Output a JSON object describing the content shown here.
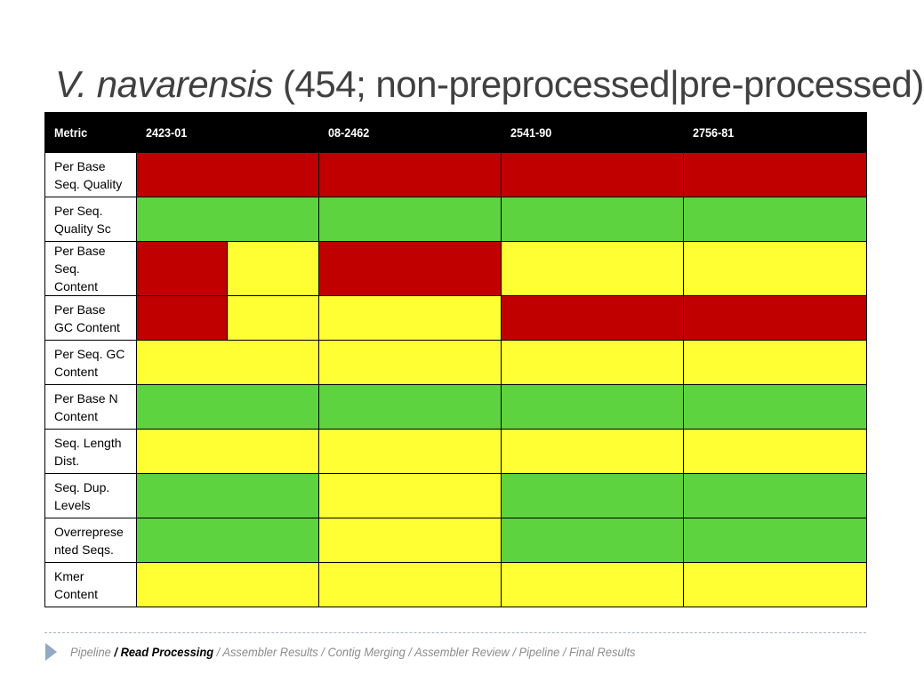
{
  "title": {
    "species": "V. navarensis",
    "subtitle": " (454; non-preprocessed|pre-processed)"
  },
  "table": {
    "headers": [
      "Metric",
      "2423-01",
      "08-2462",
      "2541-90",
      "2756-81"
    ],
    "rows": [
      {
        "label": [
          "Per Base",
          "Seq. Quality"
        ],
        "cells": [
          {
            "status": "red",
            "span": 2
          },
          {
            "status": "red",
            "span": 2
          },
          {
            "status": "red",
            "span": 2
          },
          {
            "status": "red",
            "span": 2
          }
        ]
      },
      {
        "label": [
          "Per Seq.",
          "Quality Sc"
        ],
        "cells": [
          {
            "status": "green",
            "span": 2
          },
          {
            "status": "green",
            "span": 2
          },
          {
            "status": "green",
            "span": 2
          },
          {
            "status": "green",
            "span": 2
          }
        ]
      },
      {
        "label": [
          "Per Base",
          "Seq.",
          "Content"
        ],
        "cells": [
          {
            "status": "red",
            "span": 1
          },
          {
            "status": "yellow",
            "span": 1
          },
          {
            "status": "red",
            "span": 2
          },
          {
            "status": "yellow",
            "span": 2
          },
          {
            "status": "yellow",
            "span": 2
          }
        ]
      },
      {
        "label": [
          "Per Base",
          "GC Content"
        ],
        "cells": [
          {
            "status": "red",
            "span": 1
          },
          {
            "status": "yellow",
            "span": 1
          },
          {
            "status": "yellow",
            "span": 2
          },
          {
            "status": "red",
            "span": 2
          },
          {
            "status": "red",
            "span": 2
          }
        ]
      },
      {
        "label": [
          "Per Seq. GC",
          "Content"
        ],
        "cells": [
          {
            "status": "yellow",
            "span": 2
          },
          {
            "status": "yellow",
            "span": 2
          },
          {
            "status": "yellow",
            "span": 2
          },
          {
            "status": "yellow",
            "span": 2
          }
        ]
      },
      {
        "label": [
          "Per Base N",
          "Content"
        ],
        "cells": [
          {
            "status": "green",
            "span": 2
          },
          {
            "status": "green",
            "span": 2
          },
          {
            "status": "green",
            "span": 2
          },
          {
            "status": "green",
            "span": 2
          }
        ]
      },
      {
        "label": [
          "Seq. Length",
          "Dist."
        ],
        "cells": [
          {
            "status": "yellow",
            "span": 2
          },
          {
            "status": "yellow",
            "span": 2
          },
          {
            "status": "yellow",
            "span": 2
          },
          {
            "status": "yellow",
            "span": 2
          }
        ]
      },
      {
        "label": [
          "Seq. Dup.",
          "Levels"
        ],
        "cells": [
          {
            "status": "green",
            "span": 2
          },
          {
            "status": "yellow",
            "span": 2
          },
          {
            "status": "green",
            "span": 2
          },
          {
            "status": "green",
            "span": 2
          }
        ]
      },
      {
        "label": [
          "Overreprese",
          "nted Seqs."
        ],
        "cells": [
          {
            "status": "green",
            "span": 2
          },
          {
            "status": "yellow",
            "span": 2
          },
          {
            "status": "green",
            "span": 2
          },
          {
            "status": "green",
            "span": 2
          }
        ]
      },
      {
        "label": [
          "Kmer",
          "Content"
        ],
        "cells": [
          {
            "status": "yellow",
            "span": 2
          },
          {
            "status": "yellow",
            "span": 2
          },
          {
            "status": "yellow",
            "span": 2
          },
          {
            "status": "yellow",
            "span": 2
          }
        ]
      }
    ]
  },
  "status_colors": {
    "red": "#c00000",
    "green": "#5cd33f",
    "yellow": "#ffff33"
  },
  "breadcrumb": {
    "icon": "triangle-arrow-icon",
    "items": [
      {
        "label": "Pipeline",
        "active": false,
        "sep": ""
      },
      {
        "label": "Read Processing",
        "active": true,
        "sep": " / "
      },
      {
        "label": "Assembler Results",
        "active": false,
        "sep": " / "
      },
      {
        "label": "Contig Merging",
        "active": false,
        "sep": " / "
      },
      {
        "label": "Assembler Review",
        "active": false,
        "sep": " / "
      },
      {
        "label": "Pipeline",
        "active": false,
        "sep": " / "
      },
      {
        "label": "Final Results",
        "active": false,
        "sep": " / "
      }
    ]
  }
}
